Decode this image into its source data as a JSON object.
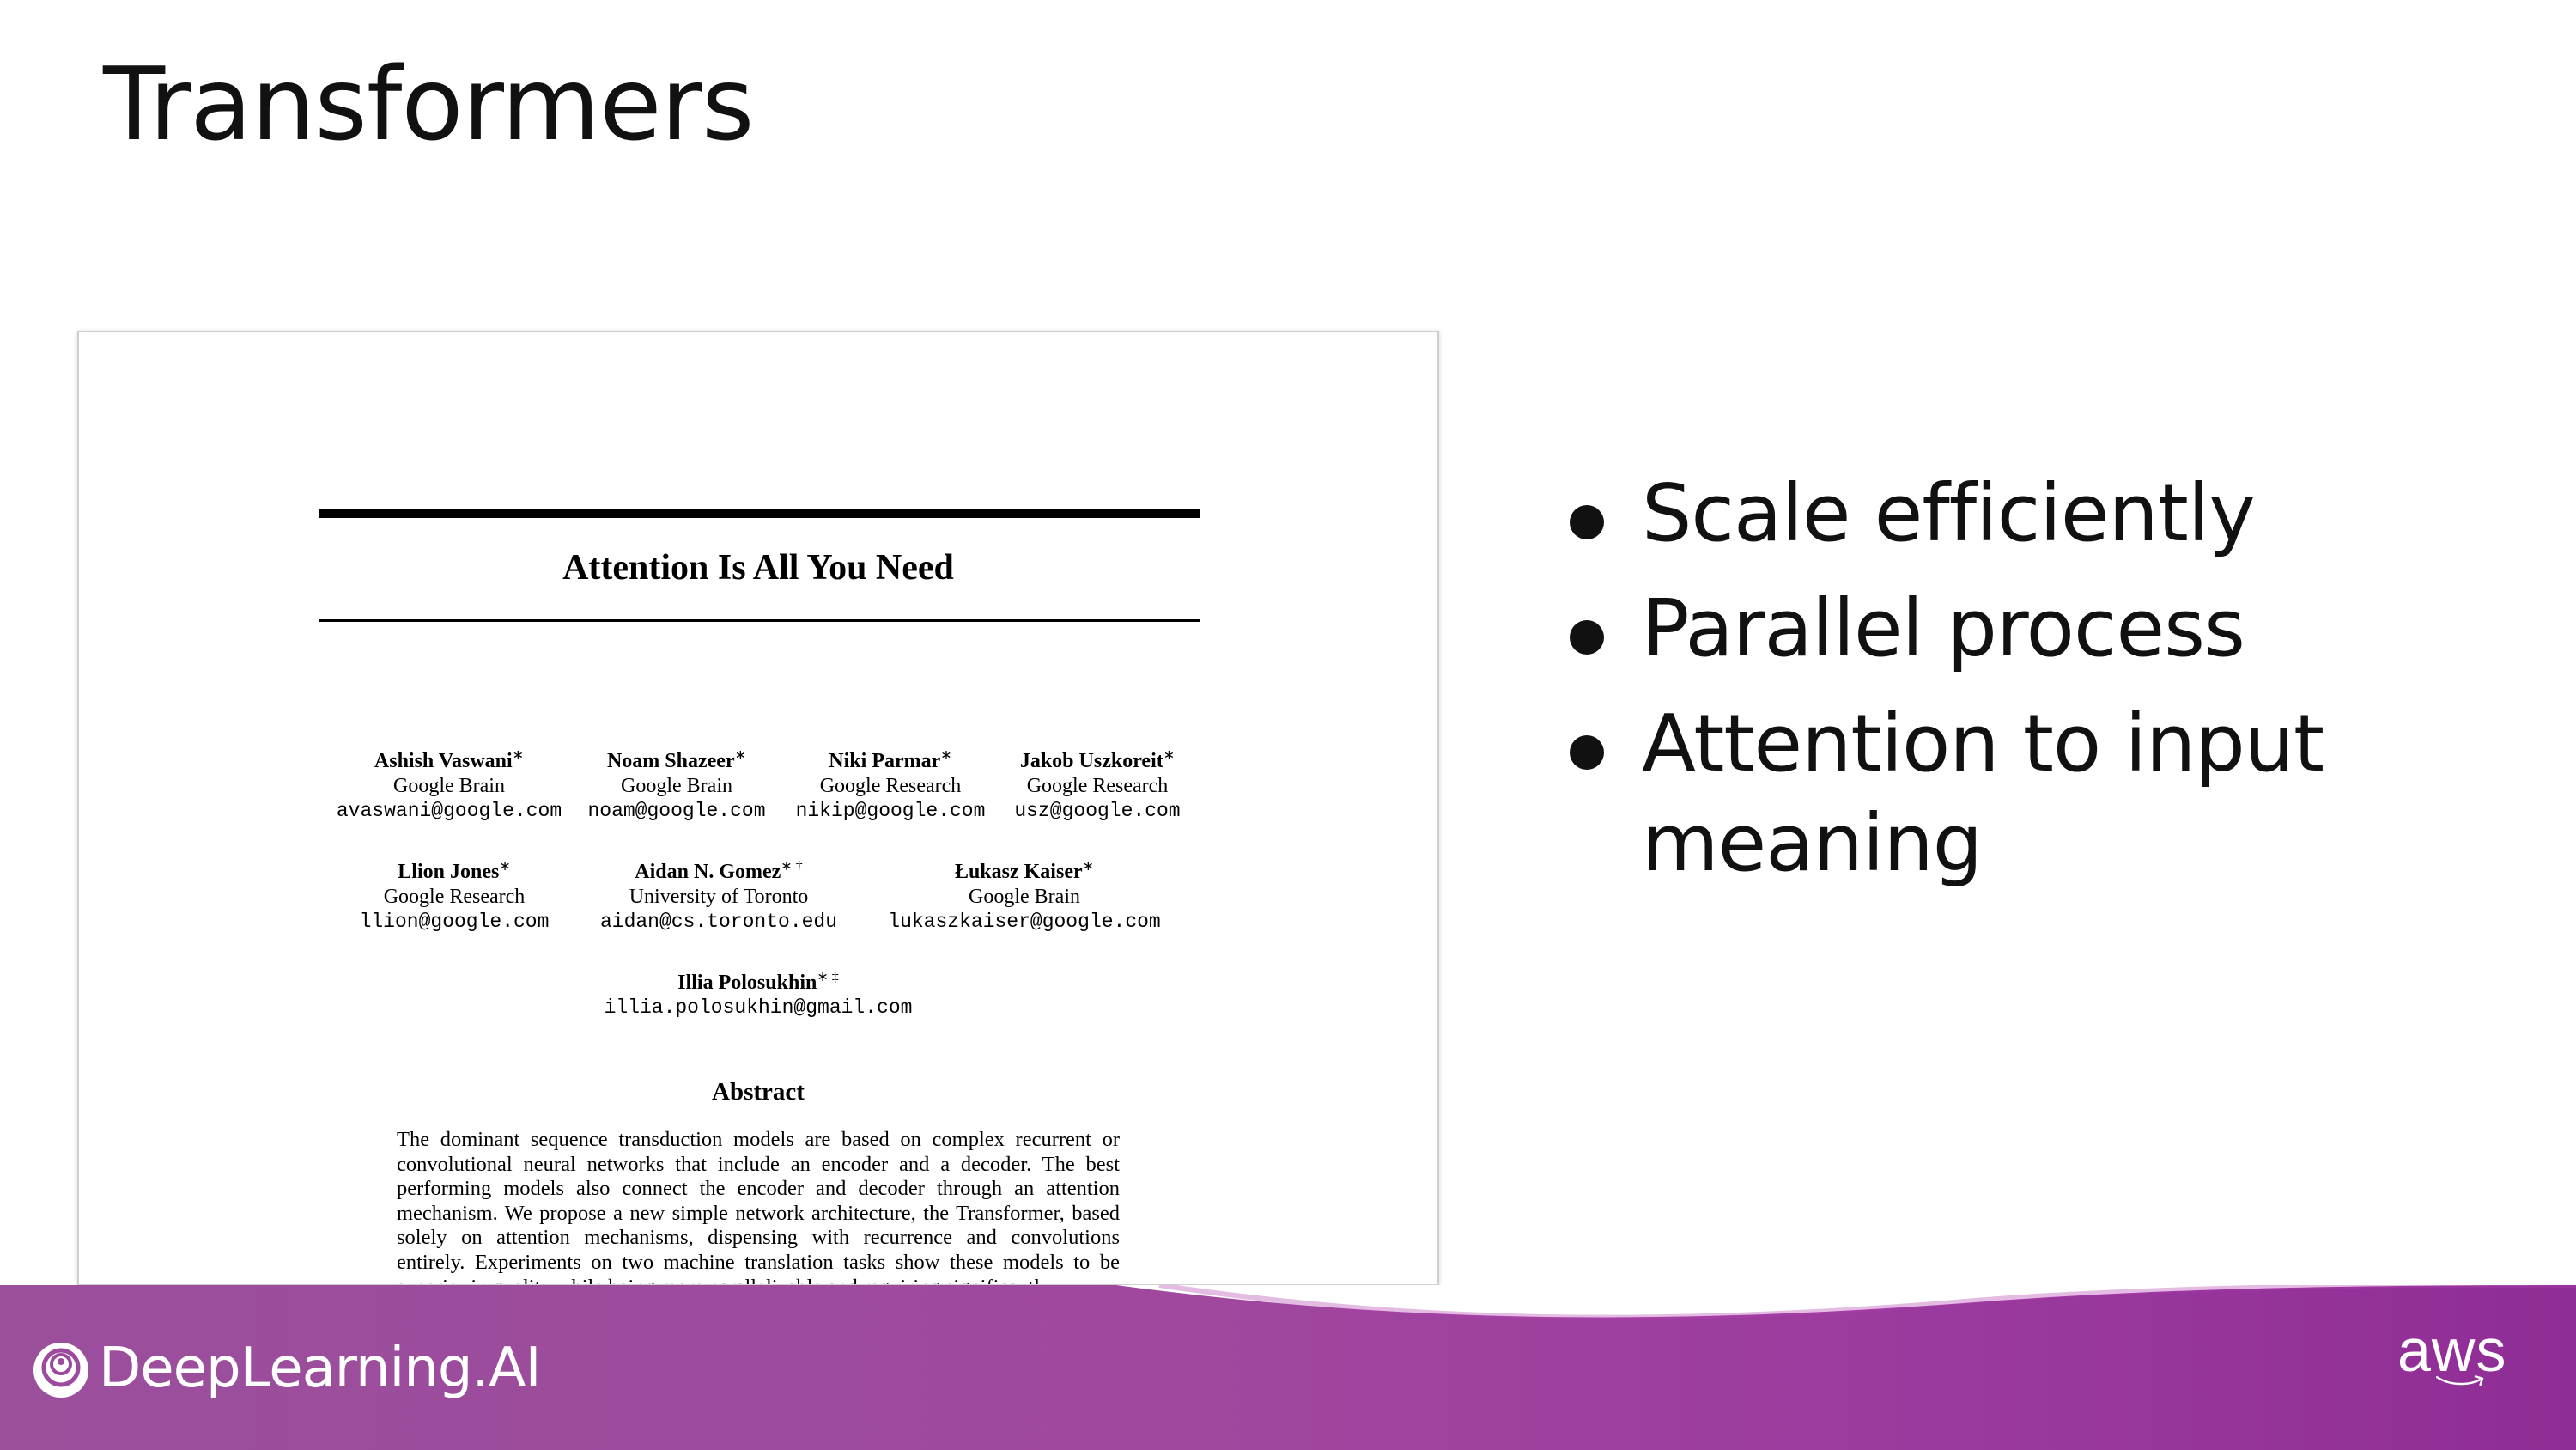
{
  "slide": {
    "title": "Transformers",
    "bullets": [
      "Scale efficiently",
      "Parallel process",
      "Attention to input meaning"
    ]
  },
  "paper": {
    "title": "Attention Is All You Need",
    "authors": [
      {
        "name": "Ashish Vaswani",
        "mark": "∗",
        "affiliation": "Google Brain",
        "email": "avaswani@google.com"
      },
      {
        "name": "Noam Shazeer",
        "mark": "∗",
        "affiliation": "Google Brain",
        "email": "noam@google.com"
      },
      {
        "name": "Niki Parmar",
        "mark": "∗",
        "affiliation": "Google Research",
        "email": "nikip@google.com"
      },
      {
        "name": "Jakob Uszkoreit",
        "mark": "∗",
        "affiliation": "Google Research",
        "email": "usz@google.com"
      },
      {
        "name": "Llion Jones",
        "mark": "∗",
        "affiliation": "Google Research",
        "email": "llion@google.com"
      },
      {
        "name": "Aidan N. Gomez",
        "mark": "∗ †",
        "affiliation": "University of Toronto",
        "email": "aidan@cs.toronto.edu"
      },
      {
        "name": "Łukasz Kaiser",
        "mark": "∗",
        "affiliation": "Google Brain",
        "email": "lukaszkaiser@google.com"
      },
      {
        "name": "Illia Polosukhin",
        "mark": "∗ ‡",
        "affiliation": "",
        "email": "illia.polosukhin@gmail.com"
      }
    ],
    "abstract_title": "Abstract",
    "abstract": "The dominant sequence transduction models are based on complex recurrent or convolutional neural networks that include an encoder and a decoder. The best performing models also connect the encoder and decoder through an attention mechanism. We propose a new simple network architecture, the Transformer, based solely on attention mechanisms, dispensing with recurrence and convolutions entirely. Experiments on two machine translation tasks show these models to be superior in quality while being more parallelizable and requiring significantly"
  },
  "footer": {
    "brand": "DeepLearning.AI",
    "partner": "aws",
    "colors": {
      "start": "#9a4f9b",
      "end": "#8f2d96"
    }
  }
}
